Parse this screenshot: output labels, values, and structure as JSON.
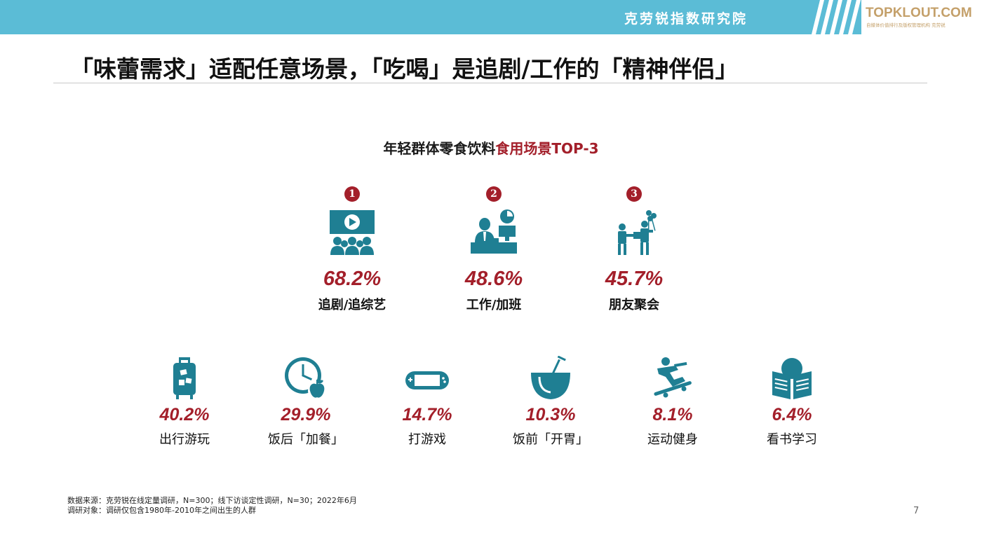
{
  "header": {
    "brand_cn": "克劳锐指数研究院",
    "logo_text": "TOPKLOUT.COM",
    "logo_sub": "自媒体价值排行及版权管理机构 克劳锐"
  },
  "title": "「味蕾需求」适配任意场景，「吃喝」是追剧/工作的「精神伴侣」",
  "subtitle": {
    "prefix": "年轻群体零食饮料",
    "highlight": "食用场景TOP-3"
  },
  "top3": [
    {
      "rank": "1",
      "pct": "68.2%",
      "label": "追剧/追综艺",
      "icon": "movie-audience-icon"
    },
    {
      "rank": "2",
      "pct": "48.6%",
      "label": "工作/加班",
      "icon": "office-worker-icon"
    },
    {
      "rank": "3",
      "pct": "45.7%",
      "label": "朋友聚会",
      "icon": "friends-party-icon"
    }
  ],
  "others": [
    {
      "pct": "40.2%",
      "label": "出行游玩",
      "icon": "luggage-icon"
    },
    {
      "pct": "29.9%",
      "label": "饭后「加餐」",
      "icon": "clock-apple-icon"
    },
    {
      "pct": "14.7%",
      "label": "打游戏",
      "icon": "game-console-icon"
    },
    {
      "pct": "10.3%",
      "label": "饭前「开胃」",
      "icon": "coconut-drink-icon"
    },
    {
      "pct": "8.1%",
      "label": "运动健身",
      "icon": "skateboard-icon"
    },
    {
      "pct": "6.4%",
      "label": "看书学习",
      "icon": "reading-icon"
    }
  ],
  "footnote": {
    "line1": "数据来源：克劳锐在线定量调研，N=300；线下访谈定性调研，N=30；2022年6月",
    "line2": "调研对象：调研仅包含1980年-2010年之间出生的人群"
  },
  "page_number": "7",
  "colors": {
    "header_bar": "#5bbcd6",
    "icon_teal": "#1f7f93",
    "accent_red": "#a31f2a",
    "logo_gold": "#c4a06a"
  }
}
